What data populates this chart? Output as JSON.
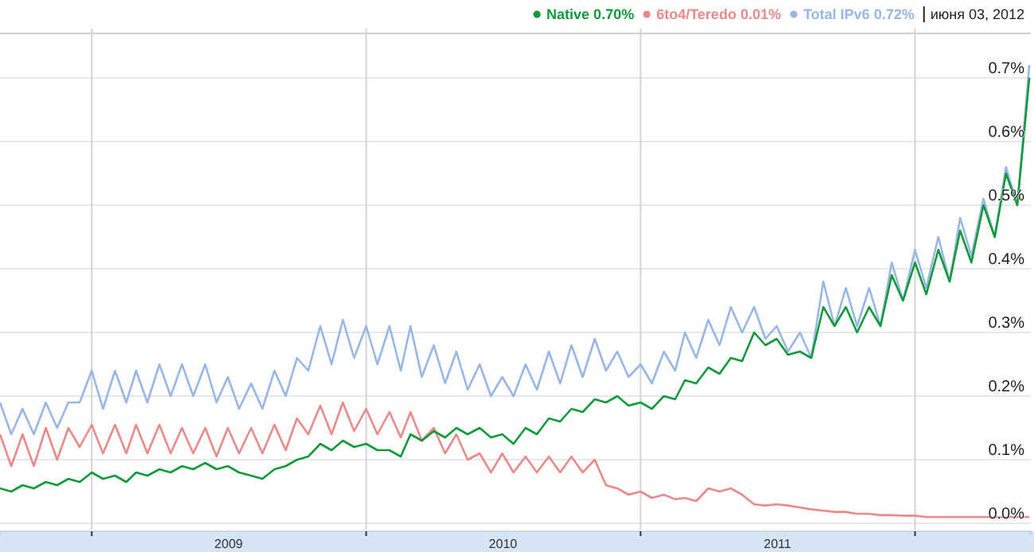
{
  "chart_data": {
    "type": "line",
    "legend": "top right",
    "grid": true,
    "marker": "none",
    "line_style": "solid",
    "annotations": [
      "июня 03, 2012"
    ],
    "xlim": [
      "2008-09-01",
      "2012-06-03"
    ],
    "xticks": [
      {
        "value": "2009-01-01",
        "label": null
      },
      {
        "value": "2009-07-02",
        "label": "2009"
      },
      {
        "value": "2010-01-01",
        "label": null
      },
      {
        "value": "2010-07-02",
        "label": "2010"
      },
      {
        "value": "2011-01-01",
        "label": null
      },
      {
        "value": "2011-07-02",
        "label": "2011"
      },
      {
        "value": "2012-01-01",
        "label": null
      }
    ],
    "ylim": [
      0,
      0.77
    ],
    "yticks": [
      {
        "value": 0,
        "label": "0.0%"
      },
      {
        "value": 0.1,
        "label": "0.1%"
      },
      {
        "value": 0.2,
        "label": "0.2%"
      },
      {
        "value": 0.3,
        "label": "0.3%"
      },
      {
        "value": 0.4,
        "label": "0.4%"
      },
      {
        "value": 0.5,
        "label": "0.5%"
      },
      {
        "value": 0.6,
        "label": "0.6%"
      },
      {
        "value": 0.7,
        "label": "0.7%"
      }
    ],
    "x": [
      "2008-09-01",
      "2008-09-16",
      "2008-10-01",
      "2008-10-16",
      "2008-11-01",
      "2008-11-16",
      "2008-12-01",
      "2008-12-16",
      "2009-01-01",
      "2009-01-16",
      "2009-02-01",
      "2009-02-16",
      "2009-03-01",
      "2009-03-16",
      "2009-04-01",
      "2009-04-16",
      "2009-05-01",
      "2009-05-16",
      "2009-06-01",
      "2009-06-16",
      "2009-07-01",
      "2009-07-16",
      "2009-08-01",
      "2009-08-16",
      "2009-09-01",
      "2009-09-16",
      "2009-10-01",
      "2009-10-16",
      "2009-11-01",
      "2009-11-16",
      "2009-12-01",
      "2009-12-16",
      "2010-01-01",
      "2010-01-16",
      "2010-02-01",
      "2010-02-16",
      "2010-03-01",
      "2010-03-16",
      "2010-04-01",
      "2010-04-16",
      "2010-05-01",
      "2010-05-16",
      "2010-06-01",
      "2010-06-16",
      "2010-07-01",
      "2010-07-16",
      "2010-08-01",
      "2010-08-16",
      "2010-09-01",
      "2010-09-16",
      "2010-10-01",
      "2010-10-16",
      "2010-11-01",
      "2010-11-16",
      "2010-12-01",
      "2010-12-16",
      "2011-01-01",
      "2011-01-16",
      "2011-02-01",
      "2011-02-16",
      "2011-03-01",
      "2011-03-16",
      "2011-04-01",
      "2011-04-16",
      "2011-05-01",
      "2011-05-16",
      "2011-06-01",
      "2011-06-16",
      "2011-07-01",
      "2011-07-16",
      "2011-08-01",
      "2011-08-16",
      "2011-09-01",
      "2011-09-16",
      "2011-10-01",
      "2011-10-16",
      "2011-11-01",
      "2011-11-16",
      "2011-12-01",
      "2011-12-16",
      "2012-01-01",
      "2012-01-16",
      "2012-02-01",
      "2012-02-16",
      "2012-03-01",
      "2012-03-16",
      "2012-04-01",
      "2012-04-16",
      "2012-05-01",
      "2012-05-16",
      "2012-06-01"
    ],
    "series": [
      {
        "name": "Total IPv6 0.72%",
        "color": "#98b6e6",
        "values": [
          0.19,
          0.14,
          0.18,
          0.14,
          0.19,
          0.15,
          0.19,
          0.19,
          0.24,
          0.18,
          0.24,
          0.19,
          0.24,
          0.19,
          0.25,
          0.2,
          0.25,
          0.2,
          0.25,
          0.19,
          0.23,
          0.18,
          0.22,
          0.18,
          0.24,
          0.2,
          0.26,
          0.24,
          0.31,
          0.25,
          0.32,
          0.26,
          0.31,
          0.25,
          0.31,
          0.24,
          0.31,
          0.23,
          0.28,
          0.22,
          0.27,
          0.21,
          0.25,
          0.2,
          0.23,
          0.2,
          0.25,
          0.21,
          0.27,
          0.22,
          0.28,
          0.23,
          0.29,
          0.24,
          0.27,
          0.23,
          0.25,
          0.22,
          0.27,
          0.24,
          0.3,
          0.26,
          0.32,
          0.28,
          0.34,
          0.3,
          0.34,
          0.29,
          0.31,
          0.27,
          0.3,
          0.26,
          0.38,
          0.31,
          0.37,
          0.31,
          0.37,
          0.31,
          0.41,
          0.35,
          0.43,
          0.37,
          0.45,
          0.38,
          0.48,
          0.42,
          0.51,
          0.45,
          0.56,
          0.5,
          0.72
        ]
      },
      {
        "name": "6to4/Teredo 0.01%",
        "color": "#ea8a8a",
        "values": [
          0.14,
          0.09,
          0.14,
          0.09,
          0.15,
          0.1,
          0.15,
          0.12,
          0.155,
          0.11,
          0.155,
          0.11,
          0.155,
          0.11,
          0.155,
          0.11,
          0.15,
          0.11,
          0.15,
          0.105,
          0.15,
          0.11,
          0.15,
          0.11,
          0.155,
          0.115,
          0.165,
          0.14,
          0.185,
          0.14,
          0.19,
          0.145,
          0.18,
          0.14,
          0.175,
          0.135,
          0.175,
          0.13,
          0.15,
          0.11,
          0.14,
          0.1,
          0.11,
          0.08,
          0.11,
          0.08,
          0.105,
          0.08,
          0.105,
          0.08,
          0.105,
          0.08,
          0.1,
          0.06,
          0.055,
          0.045,
          0.05,
          0.04,
          0.045,
          0.038,
          0.04,
          0.035,
          0.055,
          0.05,
          0.055,
          0.045,
          0.03,
          0.028,
          0.03,
          0.028,
          0.025,
          0.022,
          0.02,
          0.018,
          0.018,
          0.015,
          0.015,
          0.013,
          0.013,
          0.012,
          0.012,
          0.01,
          0.01,
          0.01,
          0.01,
          0.01,
          0.01,
          0.01,
          0.01,
          0.01,
          0.01
        ]
      },
      {
        "name": "Native 0.70%",
        "color": "#119a3b",
        "values": [
          0.055,
          0.05,
          0.06,
          0.055,
          0.065,
          0.06,
          0.07,
          0.065,
          0.08,
          0.07,
          0.075,
          0.065,
          0.08,
          0.075,
          0.085,
          0.08,
          0.09,
          0.085,
          0.095,
          0.085,
          0.09,
          0.08,
          0.075,
          0.07,
          0.085,
          0.09,
          0.1,
          0.105,
          0.125,
          0.115,
          0.13,
          0.12,
          0.125,
          0.115,
          0.115,
          0.105,
          0.14,
          0.13,
          0.145,
          0.135,
          0.15,
          0.14,
          0.15,
          0.135,
          0.14,
          0.125,
          0.15,
          0.14,
          0.165,
          0.16,
          0.18,
          0.175,
          0.195,
          0.19,
          0.2,
          0.185,
          0.19,
          0.18,
          0.2,
          0.195,
          0.225,
          0.22,
          0.245,
          0.235,
          0.26,
          0.255,
          0.3,
          0.28,
          0.29,
          0.265,
          0.27,
          0.26,
          0.34,
          0.31,
          0.34,
          0.3,
          0.34,
          0.31,
          0.39,
          0.35,
          0.41,
          0.36,
          0.43,
          0.38,
          0.46,
          0.41,
          0.5,
          0.45,
          0.55,
          0.5,
          0.7
        ]
      }
    ]
  }
}
